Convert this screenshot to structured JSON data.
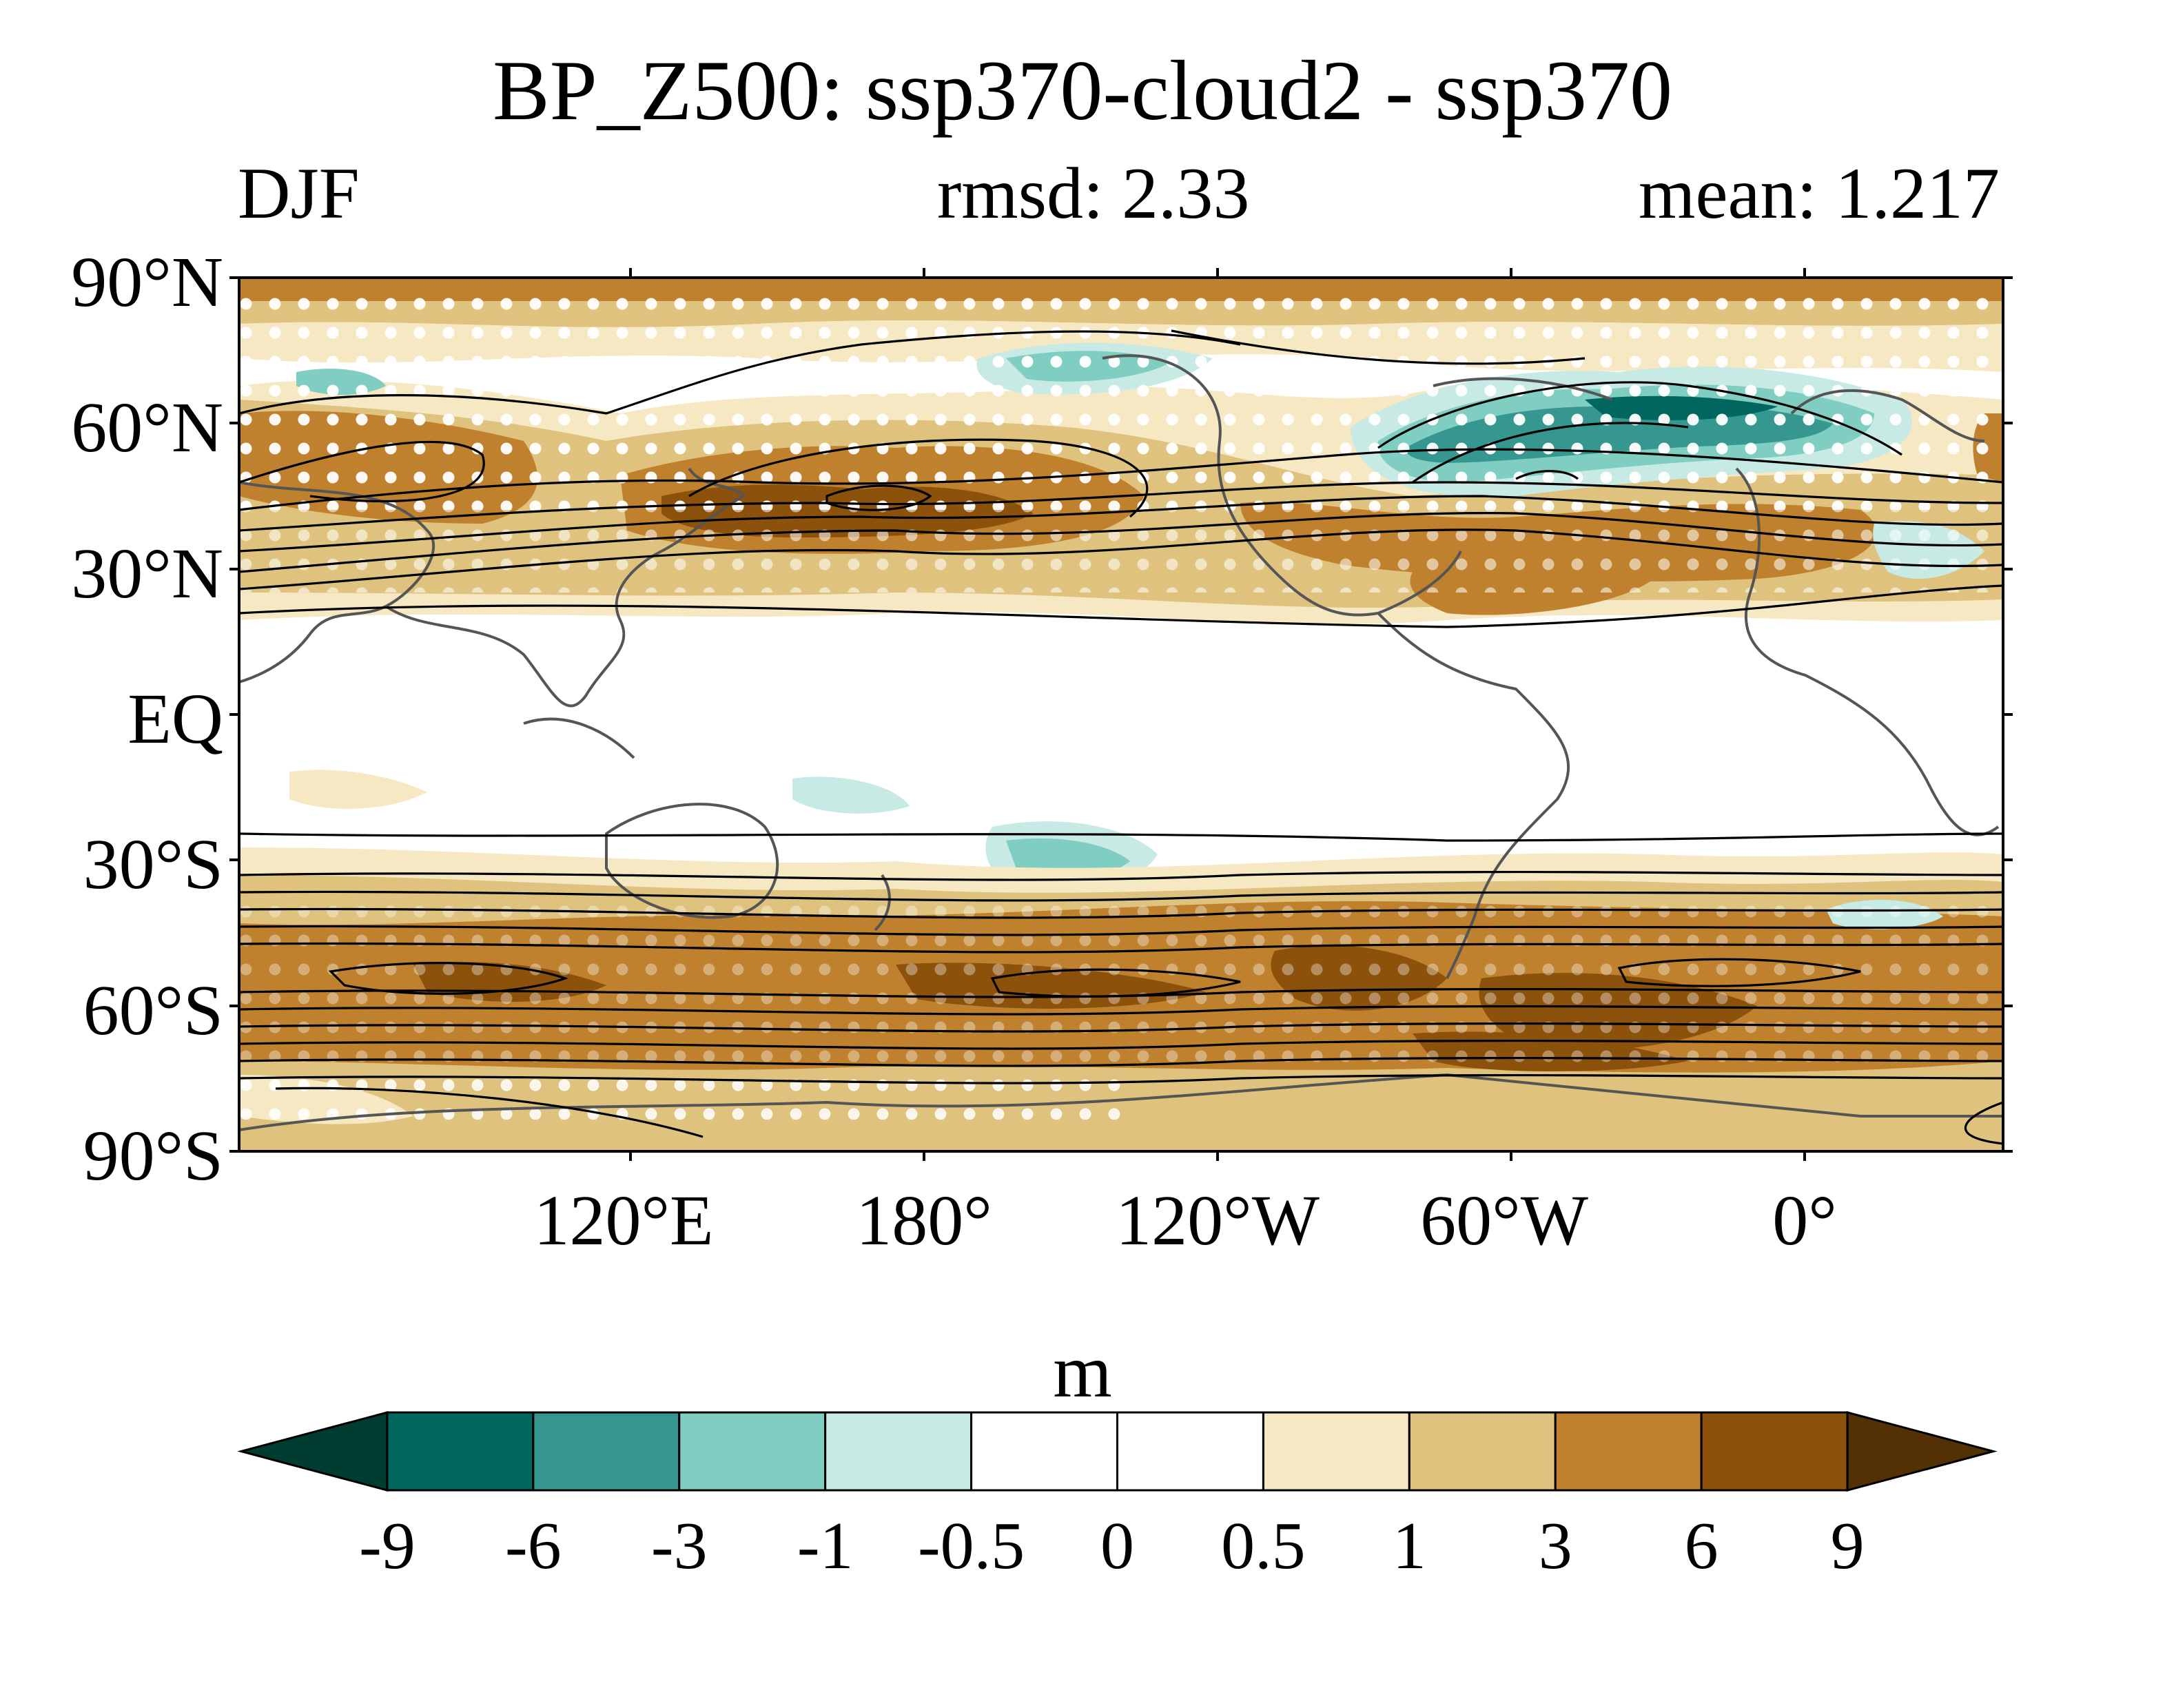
{
  "title": "BP_Z500: ssp370-cloud2 - ssp370",
  "left_label": "DJF",
  "center_label": "rmsd: 2.33",
  "right_label": "mean: 1.217",
  "map": {
    "projection": "cylindrical equidistant, centered 150°W",
    "lat_ticks": [
      "90°N",
      "60°N",
      "30°N",
      "EQ",
      "30°S",
      "60°S",
      "90°S"
    ],
    "lon_ticks": [
      "120°E",
      "180°",
      "120°W",
      "60°W",
      "0°"
    ],
    "field": "shaded difference (m) with black contour overlay of climatology and white stippling for significance",
    "coastline_color": "#555555",
    "contour_color": "#000000",
    "stipple_color": "#ffffff"
  },
  "colorbar": {
    "units": "m",
    "levels": [
      "-9",
      "-6",
      "-3",
      "-1",
      "-0.5",
      "0",
      "0.5",
      "1",
      "3",
      "6",
      "9"
    ],
    "colors": [
      "#003c30",
      "#01665e",
      "#35978f",
      "#80cdc1",
      "#c7eae5",
      "#ffffff",
      "#ffffff",
      "#f6e8c3",
      "#dfc27d",
      "#bf812d",
      "#8c510a",
      "#543005"
    ]
  }
}
